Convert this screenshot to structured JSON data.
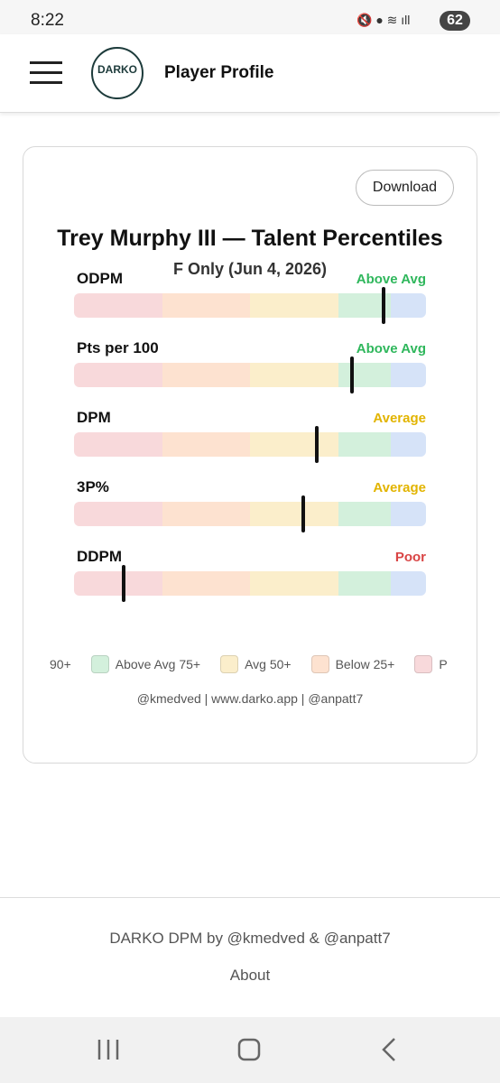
{
  "status_bar": {
    "time": "8:22",
    "battery": "62"
  },
  "header": {
    "logo": "DARKO",
    "title": "Player Profile"
  },
  "card": {
    "button": "Download",
    "title": "Trey Murphy III — Talent Percentiles",
    "subtitle": "F Only (Jun 4, 2026)",
    "scale": [
      0,
      100
    ],
    "zones": [
      {
        "from": 0,
        "to": 25,
        "color": "#f8d9db"
      },
      {
        "from": 25,
        "to": 50,
        "color": "#fde2d0"
      },
      {
        "from": 50,
        "to": 75,
        "color": "#fbeecb"
      },
      {
        "from": 75,
        "to": 90,
        "color": "#d3f0dc"
      },
      {
        "from": 90,
        "to": 100,
        "color": "#d6e3f8"
      }
    ],
    "metrics": [
      {
        "label": "ODPM",
        "rating": "Above Avg",
        "rating_color": "#2fb75c",
        "percentile": 88
      },
      {
        "label": "Pts per 100",
        "rating": "Above Avg",
        "rating_color": "#2fb75c",
        "percentile": 79
      },
      {
        "label": "DPM",
        "rating": "Average",
        "rating_color": "#e2b400",
        "percentile": 69
      },
      {
        "label": "3P%",
        "rating": "Average",
        "rating_color": "#e2b400",
        "percentile": 65
      },
      {
        "label": "DDPM",
        "rating": "Poor",
        "rating_color": "#d94545",
        "percentile": 14
      }
    ],
    "legend": [
      {
        "label": "90+"
      },
      {
        "label": "Above Avg 75+",
        "color": "#d3f0dc"
      },
      {
        "label": "Avg 50+",
        "color": "#fbeecb"
      },
      {
        "label": "Below 25+",
        "color": "#fde2d0"
      },
      {
        "label": "P",
        "color": "#f8d9db"
      }
    ],
    "credits": "@kmedved | www.darko.app | @anpatt7"
  },
  "footer": {
    "text": "DARKO DPM by @kmedved & @anpatt7",
    "link": "About"
  }
}
